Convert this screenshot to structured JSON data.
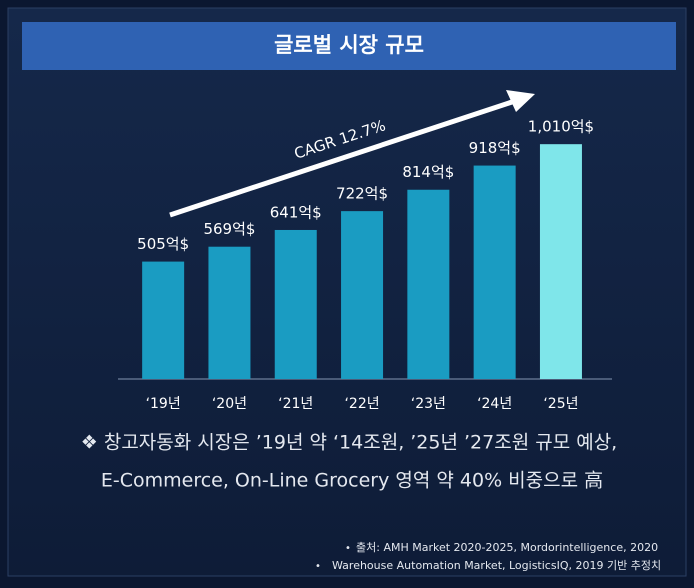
{
  "chart_data": {
    "type": "bar",
    "title": "글로벌 시장 규모",
    "categories": [
      "‘19년",
      "‘20년",
      "‘21년",
      "‘22년",
      "‘23년",
      "‘24년",
      "‘25년"
    ],
    "values": [
      505,
      569,
      641,
      722,
      814,
      918,
      1010
    ],
    "value_labels": [
      "505억$",
      "569억$",
      "641억$",
      "722억$",
      "814억$",
      "918억$",
      "1,010억$"
    ],
    "colors": [
      "#1a9cc2",
      "#1a9cc2",
      "#1a9cc2",
      "#1a9cc2",
      "#1a9cc2",
      "#1a9cc2",
      "#7fe6ea"
    ],
    "annotation": "CAGR 12.7%"
  },
  "notes": [
    "❖ 창고자동화 시장은 ’19년 약 ‘14조원, ’25년 ’27조원 규모 예상,",
    "E-Commerce, On-Line Grocery 영역 약 40% 비중으로 高"
  ],
  "sources": [
    "출처: AMH Market 2020-2025, Mordorintelligence, 2020",
    "Warehouse Automation Market, LogisticsIQ, 2019 기반 추정치"
  ]
}
